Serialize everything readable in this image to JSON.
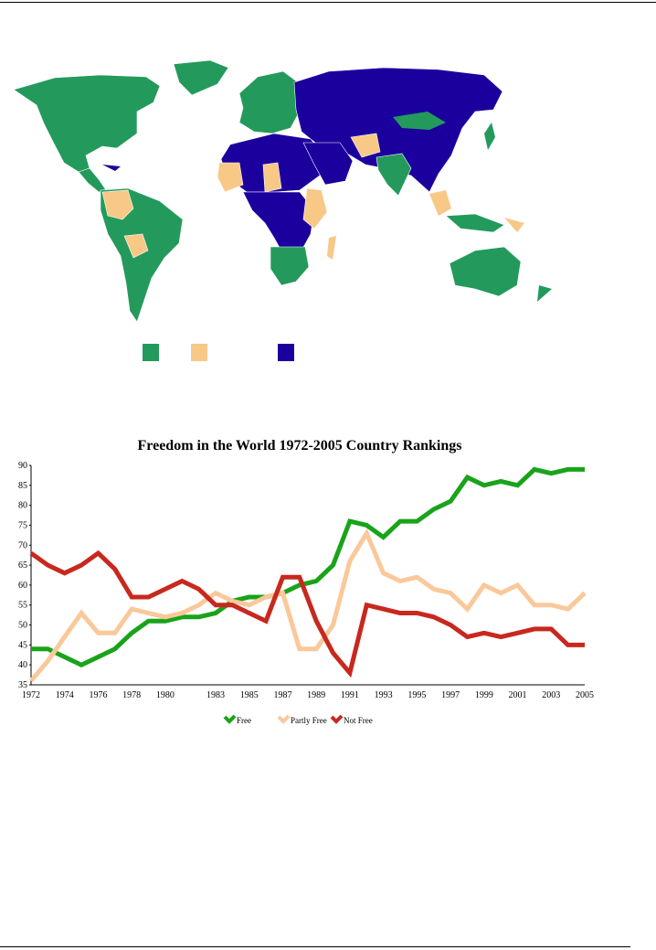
{
  "map": {
    "legend": [
      {
        "label": "",
        "color": "#239a5b"
      },
      {
        "label": "",
        "color": "#f8c887"
      },
      {
        "label": "",
        "color": "#1c009e"
      }
    ]
  },
  "chart_data": {
    "type": "line",
    "title": "Freedom in the World 1972-2005 Country Rankings",
    "xlabel": "",
    "ylabel": "",
    "ylim": [
      35,
      90
    ],
    "yticks": [
      35,
      40,
      45,
      50,
      55,
      60,
      65,
      70,
      75,
      80,
      85,
      90
    ],
    "xticks": [
      "1972",
      "1974",
      "1976",
      "1978",
      "1980",
      "1983",
      "1985",
      "1987",
      "1989",
      "1991",
      "1993",
      "1995",
      "1997",
      "1999",
      "2001",
      "2003",
      "2005"
    ],
    "x": [
      "1972",
      "1973",
      "1974",
      "1975",
      "1976",
      "1977",
      "1978",
      "1979",
      "1980",
      "1981",
      "1982",
      "1983",
      "1984",
      "1985",
      "1986",
      "1987",
      "1988",
      "1989",
      "1990",
      "1991",
      "1992",
      "1993",
      "1994",
      "1995",
      "1996",
      "1997",
      "1998",
      "1999",
      "2000",
      "2001",
      "2002",
      "2003",
      "2004",
      "2005"
    ],
    "legend_position": "bottom",
    "grid": false,
    "series": [
      {
        "name": "Free",
        "color": "#1aa31a",
        "values": [
          44,
          44,
          42,
          40,
          42,
          44,
          48,
          51,
          51,
          52,
          52,
          53,
          56,
          57,
          57,
          58,
          60,
          61,
          65,
          76,
          75,
          72,
          76,
          76,
          79,
          81,
          87,
          85,
          86,
          85,
          89,
          88,
          89,
          89
        ]
      },
      {
        "name": "Partly Free",
        "color": "#fac89a",
        "values": [
          36,
          41,
          47,
          53,
          48,
          48,
          54,
          53,
          52,
          53,
          55,
          58,
          56,
          55,
          57,
          58,
          44,
          44,
          50,
          66,
          73,
          63,
          61,
          62,
          59,
          58,
          54,
          60,
          58,
          60,
          55,
          55,
          54,
          58
        ]
      },
      {
        "name": "Not Free",
        "color": "#c8281e",
        "values": [
          68,
          65,
          63,
          65,
          68,
          64,
          57,
          57,
          59,
          61,
          59,
          55,
          55,
          53,
          51,
          62,
          62,
          51,
          43,
          38,
          55,
          54,
          53,
          53,
          52,
          50,
          47,
          48,
          47,
          48,
          49,
          49,
          45,
          45
        ]
      }
    ]
  }
}
